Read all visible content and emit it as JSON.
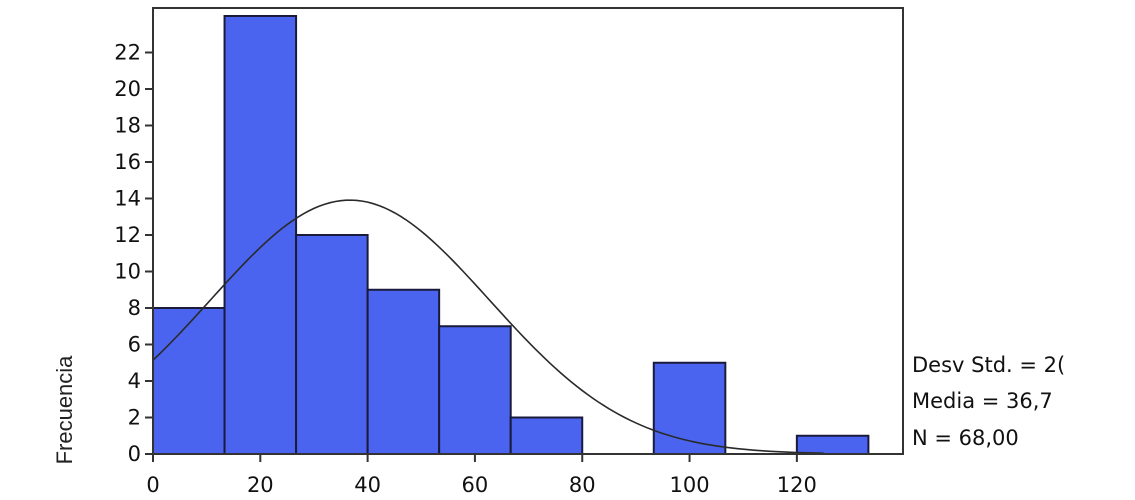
{
  "chart_data": {
    "type": "bar",
    "title": "",
    "xlabel": "",
    "ylabel": "Frecuencia",
    "bin_width": 13.333,
    "bins": [
      {
        "start": 0,
        "end": 13.333,
        "count": 8
      },
      {
        "start": 13.333,
        "end": 26.667,
        "count": 24
      },
      {
        "start": 26.667,
        "end": 40,
        "count": 12
      },
      {
        "start": 40,
        "end": 53.333,
        "count": 9
      },
      {
        "start": 53.333,
        "end": 66.667,
        "count": 7
      },
      {
        "start": 66.667,
        "end": 80,
        "count": 2
      },
      {
        "start": 80,
        "end": 93.333,
        "count": 0
      },
      {
        "start": 93.333,
        "end": 106.667,
        "count": 5
      },
      {
        "start": 106.667,
        "end": 120,
        "count": 0
      },
      {
        "start": 120,
        "end": 133.333,
        "count": 1
      }
    ],
    "xticks": [
      "0",
      "20",
      "40",
      "60",
      "80",
      "100",
      "120"
    ],
    "yticks": [
      "0",
      "2",
      "4",
      "6",
      "8",
      "10",
      "12",
      "14",
      "16",
      "18",
      "20",
      "22"
    ],
    "xlim": [
      0,
      140
    ],
    "ylim": [
      0,
      24
    ],
    "normal_curve": {
      "mean": 36.7,
      "sd": 26
    },
    "stats": [
      "Desv Std. = 2(",
      "Media = 36,7",
      "N = 68,00"
    ],
    "colors": {
      "bar": "#4a64f0",
      "curve": "#2a2a2a"
    }
  }
}
